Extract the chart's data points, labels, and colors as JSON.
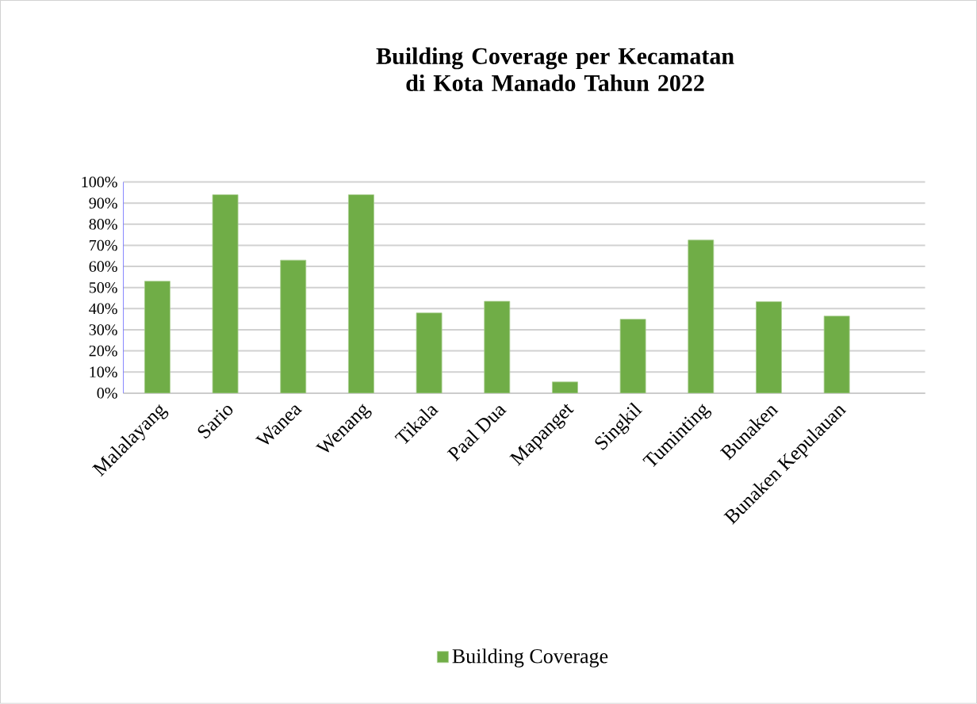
{
  "chart_data": {
    "type": "bar",
    "title": "Building Coverage per Kecamatan di Kota Manado Tahun 2022",
    "categories": [
      "Malalayang",
      "Sario",
      "Wanea",
      "Wenang",
      "Tikala",
      "Paal Dua",
      "Mapanget",
      "Singkil",
      "Tuminting",
      "Bunaken",
      "Bunaken Kepulauan"
    ],
    "series": [
      {
        "name": "Building Coverage",
        "color": "#70ad47",
        "values": [
          53,
          94,
          63,
          94,
          38,
          43.5,
          5.3,
          35,
          72.5,
          43.3,
          36.5
        ]
      }
    ],
    "ylim": [
      0,
      100
    ],
    "yticks": [
      {
        "value": 0,
        "label": "0%"
      },
      {
        "value": 10,
        "label": "10%"
      },
      {
        "value": 20,
        "label": "20%"
      },
      {
        "value": 30,
        "label": "30%"
      },
      {
        "value": 40,
        "label": "40%"
      },
      {
        "value": 50,
        "label": "50%"
      },
      {
        "value": 60,
        "label": "60%"
      },
      {
        "value": 70,
        "label": "70%"
      },
      {
        "value": 80,
        "label": "80%"
      },
      {
        "value": 90,
        "label": "90%"
      },
      {
        "value": 100,
        "label": "100%"
      }
    ],
    "grid": "y",
    "legend": "bottom"
  }
}
